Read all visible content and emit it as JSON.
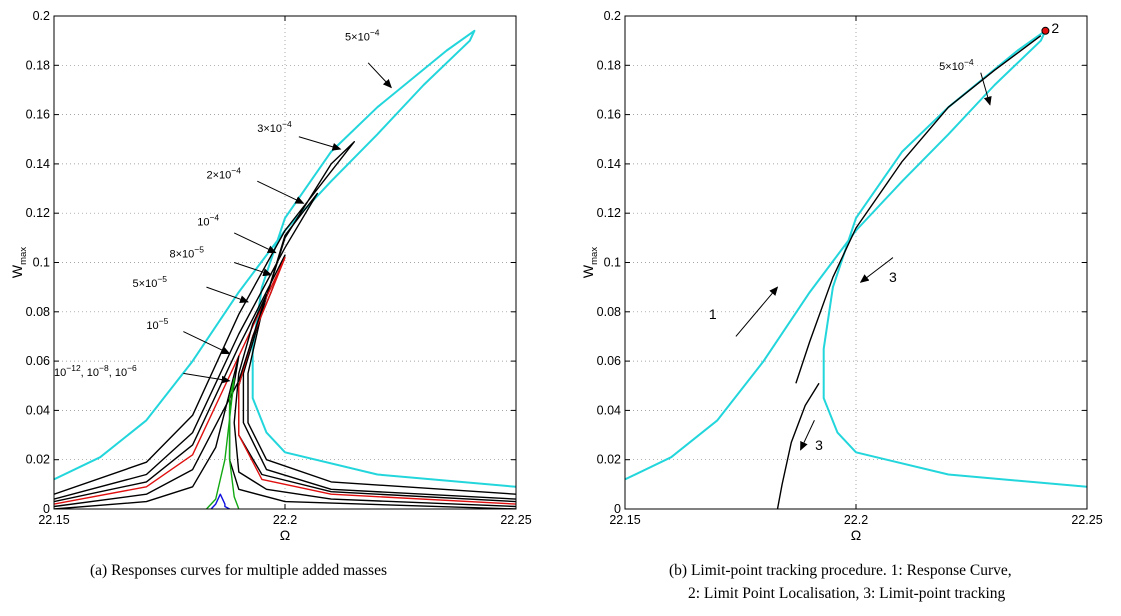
{
  "chart_data": [
    {
      "type": "line",
      "xlabel": "Ω",
      "ylabel": "W",
      "ylabel_sub": "max",
      "xlim": [
        22.15,
        22.25
      ],
      "ylim": [
        0,
        0.2
      ],
      "xticks": [
        "22.15",
        "22.2",
        "22.25"
      ],
      "yticks": [
        "0",
        "0.02",
        "0.04",
        "0.06",
        "0.08",
        "0.1",
        "0.12",
        "0.14",
        "0.16",
        "0.18",
        "0.2"
      ],
      "grid": true,
      "colors": {
        "cyan": "#22d6dc",
        "black": "#000000",
        "red": "#e01010",
        "green": "#12a812",
        "blue": "#1010e0"
      },
      "series": [
        {
          "color": "cyan",
          "x": [
            22.15,
            22.16,
            22.17,
            22.18,
            22.19,
            22.2,
            22.21,
            22.22,
            22.23,
            22.24,
            22.241,
            22.235,
            22.22,
            22.21,
            22.2,
            22.195,
            22.193,
            22.193,
            22.196,
            22.2,
            22.22,
            22.25
          ],
          "values": [
            0.012,
            0.021,
            0.036,
            0.06,
            0.088,
            0.113,
            0.133,
            0.152,
            0.172,
            0.19,
            0.194,
            0.186,
            0.163,
            0.145,
            0.118,
            0.09,
            0.065,
            0.045,
            0.031,
            0.023,
            0.014,
            0.009
          ]
        },
        {
          "color": "black",
          "x": [
            22.15,
            22.17,
            22.18,
            22.19,
            22.2,
            22.21,
            22.215,
            22.21,
            22.2,
            22.195,
            22.192,
            22.192,
            22.196,
            22.21,
            22.25
          ],
          "values": [
            0.006,
            0.019,
            0.038,
            0.079,
            0.113,
            0.137,
            0.149,
            0.14,
            0.11,
            0.08,
            0.055,
            0.035,
            0.02,
            0.011,
            0.006
          ]
        },
        {
          "color": "black",
          "x": [
            22.15,
            22.17,
            22.18,
            22.19,
            22.2,
            22.207,
            22.2,
            22.195,
            22.191,
            22.191,
            22.196,
            22.21,
            22.25
          ],
          "values": [
            0.004,
            0.014,
            0.031,
            0.071,
            0.106,
            0.128,
            0.111,
            0.08,
            0.055,
            0.035,
            0.016,
            0.008,
            0.004
          ]
        },
        {
          "color": "black",
          "x": [
            22.15,
            22.17,
            22.18,
            22.19,
            22.2,
            22.197,
            22.193,
            22.19,
            22.19,
            22.195,
            22.21,
            22.25
          ],
          "values": [
            0.003,
            0.011,
            0.026,
            0.066,
            0.103,
            0.088,
            0.07,
            0.05,
            0.03,
            0.014,
            0.007,
            0.003
          ]
        },
        {
          "color": "red",
          "x": [
            22.15,
            22.17,
            22.18,
            22.19,
            22.2,
            22.197,
            22.193,
            22.19,
            22.19,
            22.195,
            22.21,
            22.25
          ],
          "values": [
            0.002,
            0.009,
            0.022,
            0.062,
            0.102,
            0.088,
            0.07,
            0.05,
            0.03,
            0.012,
            0.006,
            0.002
          ]
        },
        {
          "color": "black",
          "x": [
            22.15,
            22.17,
            22.18,
            22.19,
            22.196,
            22.193,
            22.19,
            22.189,
            22.19,
            22.196,
            22.21,
            22.25
          ],
          "values": [
            0.001,
            0.006,
            0.016,
            0.052,
            0.087,
            0.075,
            0.055,
            0.035,
            0.015,
            0.008,
            0.004,
            0.001
          ]
        },
        {
          "color": "black",
          "x": [
            22.15,
            22.17,
            22.18,
            22.185,
            22.19,
            22.188,
            22.188,
            22.19,
            22.2,
            22.25
          ],
          "values": [
            0.0,
            0.003,
            0.009,
            0.025,
            0.062,
            0.04,
            0.02,
            0.008,
            0.003,
            0.0
          ]
        },
        {
          "color": "green",
          "x": [
            22.183,
            22.185,
            22.187,
            22.189,
            22.188,
            22.188,
            22.189,
            22.19
          ],
          "values": [
            0.0,
            0.004,
            0.02,
            0.053,
            0.045,
            0.02,
            0.005,
            0.0
          ]
        },
        {
          "color": "blue",
          "x": [
            22.184,
            22.185,
            22.186,
            22.187,
            22.187,
            22.188
          ],
          "values": [
            0.0,
            0.002,
            0.006,
            0.002,
            0.001,
            0.0
          ]
        }
      ],
      "annotations": [
        {
          "mantissa": "5×10",
          "exp": "−4",
          "x": 22.213,
          "y": 0.19,
          "ax": 22.218,
          "ay": 0.181,
          "bx": 22.223,
          "by": 0.171
        },
        {
          "mantissa": "3×10",
          "exp": "−4",
          "x": 22.194,
          "y": 0.153,
          "ax": 22.203,
          "ay": 0.151,
          "bx": 22.212,
          "by": 0.146
        },
        {
          "mantissa": "2×10",
          "exp": "−4",
          "x": 22.183,
          "y": 0.134,
          "ax": 22.194,
          "ay": 0.133,
          "bx": 22.204,
          "by": 0.124
        },
        {
          "mantissa": "10",
          "exp": "−4",
          "x": 22.181,
          "y": 0.115,
          "ax": 22.189,
          "ay": 0.112,
          "bx": 22.198,
          "by": 0.104
        },
        {
          "mantissa": "8×10",
          "exp": "−5",
          "x": 22.175,
          "y": 0.102,
          "ax": 22.189,
          "ay": 0.1,
          "bx": 22.197,
          "by": 0.095
        },
        {
          "mantissa": "5×10",
          "exp": "−5",
          "x": 22.167,
          "y": 0.09,
          "ax": 22.183,
          "ay": 0.09,
          "bx": 22.192,
          "by": 0.084
        },
        {
          "mantissa": "10",
          "exp": "−5",
          "x": 22.17,
          "y": 0.073,
          "ax": 22.178,
          "ay": 0.072,
          "bx": 22.188,
          "by": 0.063
        },
        {
          "mantissa": "10",
          "exp": "−12",
          "mantissa2": ", 10",
          "exp2": "−8",
          "mantissa3": ", 10",
          "exp3": "−6",
          "x": 22.15,
          "y": 0.054,
          "ax": 22.178,
          "ay": 0.055,
          "bx": 22.188,
          "by": 0.052
        }
      ]
    },
    {
      "type": "line",
      "xlabel": "Ω",
      "ylabel": "W",
      "ylabel_sub": "max",
      "xlim": [
        22.15,
        22.25
      ],
      "ylim": [
        0,
        0.2
      ],
      "xticks": [
        "22.15",
        "22.2",
        "22.25"
      ],
      "yticks": [
        "0",
        "0.02",
        "0.04",
        "0.06",
        "0.08",
        "0.1",
        "0.12",
        "0.14",
        "0.16",
        "0.18",
        "0.2"
      ],
      "grid": true,
      "colors": {
        "cyan": "#22d6dc",
        "black": "#000000",
        "point": "#e01010"
      },
      "series": [
        {
          "color": "cyan",
          "x": [
            22.15,
            22.16,
            22.17,
            22.18,
            22.19,
            22.2,
            22.21,
            22.22,
            22.23,
            22.24,
            22.241,
            22.235,
            22.22,
            22.21,
            22.2,
            22.195,
            22.193,
            22.193,
            22.196,
            22.2,
            22.22,
            22.25
          ],
          "values": [
            0.012,
            0.021,
            0.036,
            0.06,
            0.088,
            0.113,
            0.133,
            0.152,
            0.172,
            0.19,
            0.194,
            0.186,
            0.163,
            0.145,
            0.118,
            0.09,
            0.065,
            0.045,
            0.031,
            0.023,
            0.014,
            0.009
          ]
        },
        {
          "color": "black",
          "x": [
            22.187,
            22.19,
            22.195,
            22.2,
            22.21,
            22.22,
            22.23,
            22.24
          ],
          "values": [
            0.051,
            0.068,
            0.094,
            0.114,
            0.141,
            0.163,
            0.178,
            0.192
          ]
        },
        {
          "color": "black",
          "x": [
            22.183,
            22.184,
            22.186,
            22.189,
            22.192
          ],
          "values": [
            0.0,
            0.01,
            0.027,
            0.042,
            0.051
          ]
        }
      ],
      "marker": {
        "label": "2",
        "x": 22.241,
        "y": 0.194
      },
      "annotations": [
        {
          "text": "1",
          "x": 22.169,
          "y": 0.077,
          "ax": 22.174,
          "ay": 0.07,
          "bx": 22.183,
          "by": 0.09
        },
        {
          "text": "3",
          "x": 22.208,
          "y": 0.092,
          "ax": 22.208,
          "ay": 0.102,
          "bx": 22.201,
          "by": 0.092
        },
        {
          "text": "3",
          "x": 22.192,
          "y": 0.024,
          "ax": 22.191,
          "ay": 0.036,
          "bx": 22.188,
          "by": 0.024
        }
      ],
      "label_annotations": [
        {
          "mantissa": "5×10",
          "exp": "−4",
          "x": 22.218,
          "y": 0.178,
          "ax": 22.227,
          "ay": 0.177,
          "bx": 22.229,
          "by": 0.164
        }
      ]
    }
  ],
  "captions": {
    "a": "(a) Responses curves for multiple added masses",
    "b_line1": "(b) Limit-point tracking procedure.  1: Response Curve,",
    "b_line2": "2: Limit Point Localisation, 3: Limit-point tracking"
  }
}
